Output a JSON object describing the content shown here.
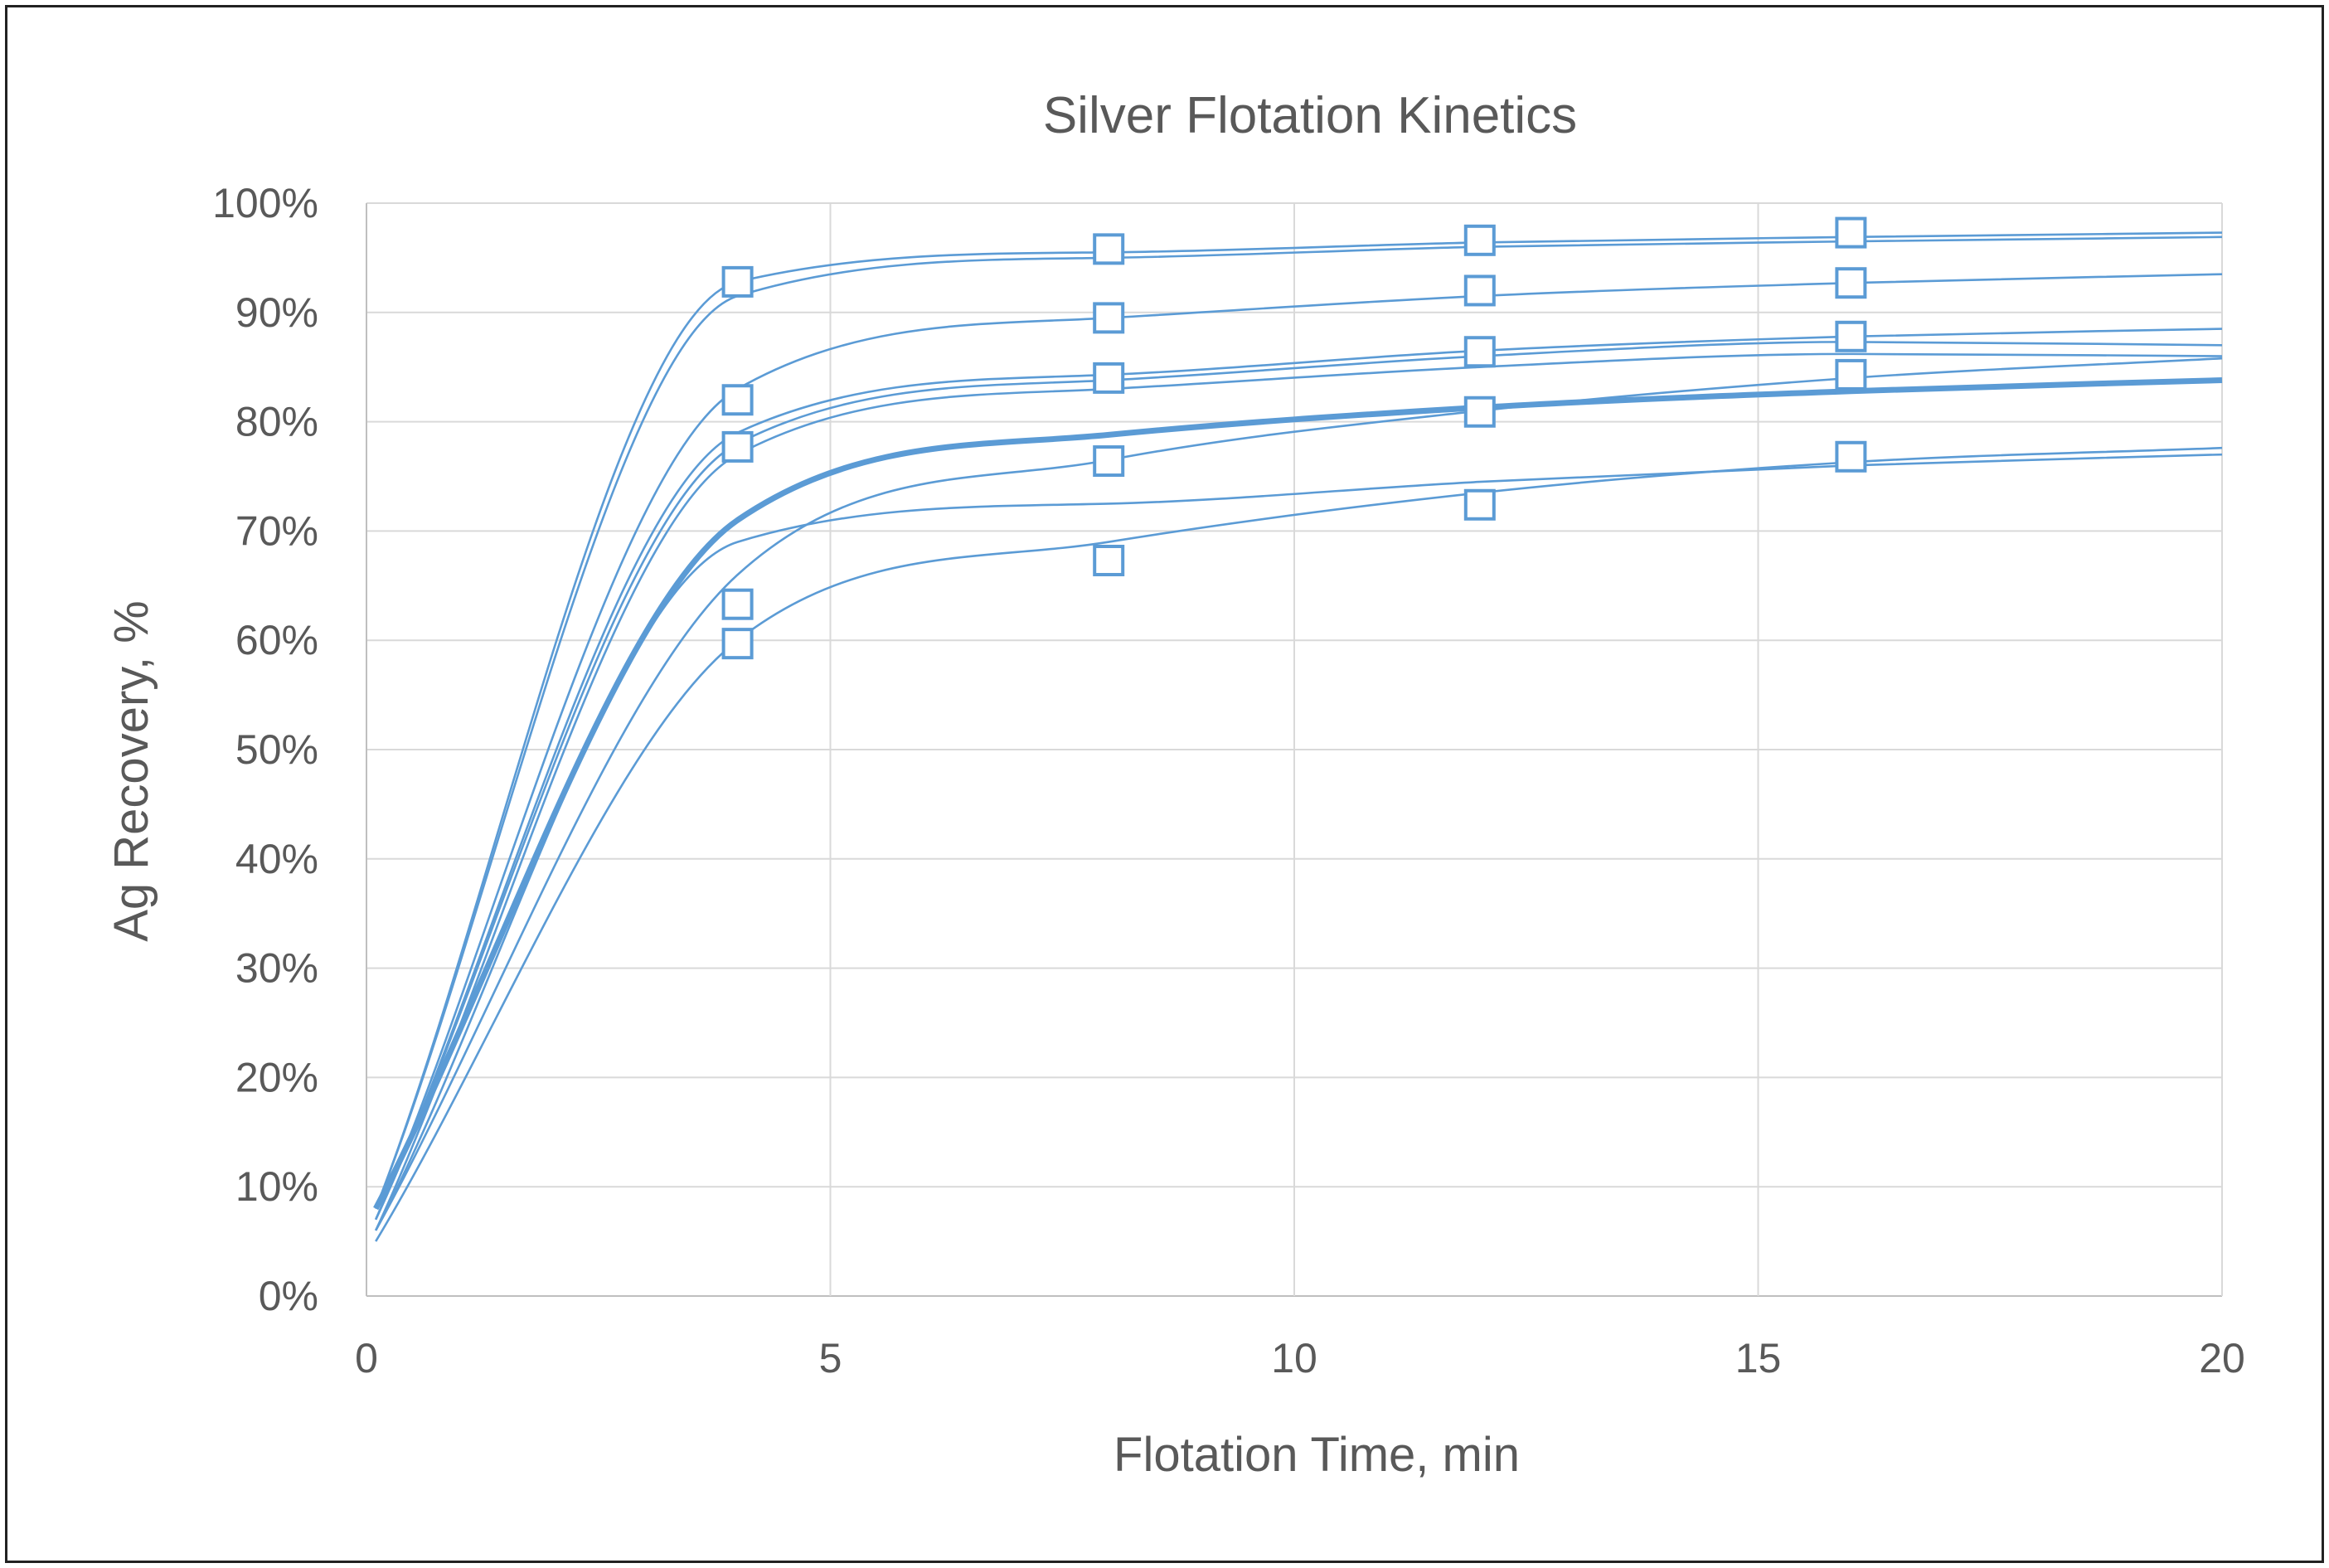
{
  "chart_data": {
    "type": "scatter",
    "title": "Silver Flotation Kinetics",
    "xlabel": "Flotation Time, min",
    "ylabel": "Ag Recovery, %",
    "xlim": [
      0,
      20
    ],
    "ylim": [
      0,
      100
    ],
    "x_ticks": [
      "0",
      "5",
      "10",
      "15",
      "20"
    ],
    "y_ticks": [
      "0%",
      "10%",
      "20%",
      "30%",
      "40%",
      "50%",
      "60%",
      "70%",
      "80%",
      "90%",
      "100%"
    ],
    "grid": true,
    "legend": "none",
    "colors": {
      "series": "#5b9bd5",
      "grid": "#d9d9d9",
      "axis": "#bfbfbf"
    },
    "marker": "open-square",
    "points": [
      {
        "x": 4,
        "y": 92.8
      },
      {
        "x": 4,
        "y": 82.0
      },
      {
        "x": 4,
        "y": 77.7
      },
      {
        "x": 4,
        "y": 63.3
      },
      {
        "x": 4,
        "y": 59.7
      },
      {
        "x": 8,
        "y": 95.8
      },
      {
        "x": 8,
        "y": 89.5
      },
      {
        "x": 8,
        "y": 84.0
      },
      {
        "x": 8,
        "y": 76.4
      },
      {
        "x": 8,
        "y": 67.3
      },
      {
        "x": 12,
        "y": 96.6
      },
      {
        "x": 12,
        "y": 92.0
      },
      {
        "x": 12,
        "y": 86.4
      },
      {
        "x": 12,
        "y": 80.9
      },
      {
        "x": 12,
        "y": 72.4
      },
      {
        "x": 16,
        "y": 97.3
      },
      {
        "x": 16,
        "y": 92.7
      },
      {
        "x": 16,
        "y": 87.8
      },
      {
        "x": 16,
        "y": 84.3
      },
      {
        "x": 16,
        "y": 76.8
      }
    ],
    "fit_curves": [
      {
        "x": [
          0.1,
          4,
          8,
          12,
          16,
          20
        ],
        "y": [
          8,
          92.8,
          95.5,
          96.4,
          96.9,
          97.3
        ]
      },
      {
        "x": [
          0.1,
          4,
          8,
          12,
          16,
          20
        ],
        "y": [
          8,
          91.5,
          95.0,
          96.0,
          96.5,
          96.9
        ]
      },
      {
        "x": [
          0.1,
          4,
          8,
          12,
          16,
          20
        ],
        "y": [
          7,
          83.0,
          89.5,
          91.5,
          92.7,
          93.5
        ]
      },
      {
        "x": [
          0.1,
          4,
          8,
          12,
          16,
          20
        ],
        "y": [
          7,
          79.0,
          84.3,
          86.5,
          87.8,
          88.5
        ]
      },
      {
        "x": [
          0.1,
          4,
          8,
          12,
          16,
          20
        ],
        "y": [
          7,
          78.0,
          83.8,
          86.0,
          87.3,
          87.0
        ]
      },
      {
        "x": [
          0.1,
          4,
          8,
          12,
          16,
          20
        ],
        "y": [
          6,
          77.0,
          83.0,
          85.0,
          86.2,
          86.0
        ]
      },
      {
        "x": [
          0.1,
          4,
          8,
          12,
          16,
          20
        ],
        "y": [
          8,
          71.0,
          78.8,
          81.3,
          82.8,
          83.8
        ],
        "bold": true
      },
      {
        "x": [
          0.1,
          4,
          8,
          12,
          16,
          20
        ],
        "y": [
          6,
          66.0,
          76.5,
          81.0,
          84.0,
          85.8
        ]
      },
      {
        "x": [
          0.1,
          4,
          8,
          12,
          16,
          20
        ],
        "y": [
          6,
          69.0,
          72.5,
          74.5,
          76.0,
          77.0
        ]
      },
      {
        "x": [
          0.1,
          4,
          8,
          12,
          16,
          20
        ],
        "y": [
          5,
          60.0,
          69.0,
          73.5,
          76.3,
          77.6
        ]
      }
    ]
  }
}
